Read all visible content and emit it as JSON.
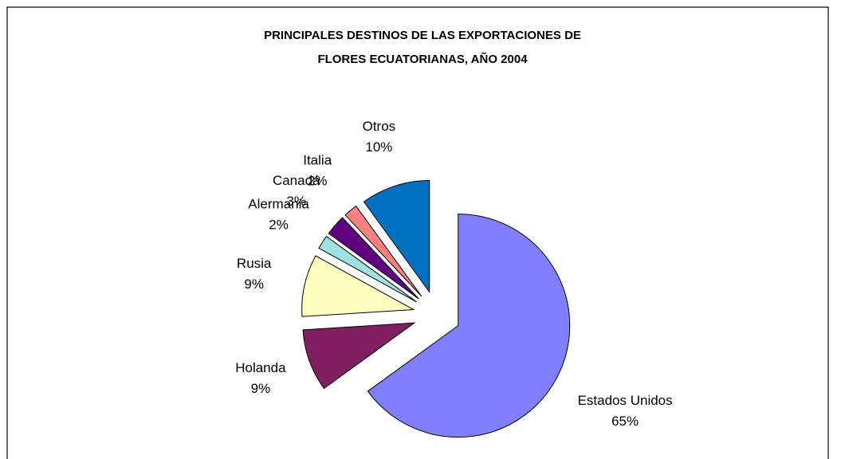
{
  "chart_data": {
    "type": "pie",
    "title": [
      "PRINCIPALES DESTINOS DE LAS EXPORTACIONES DE",
      "FLORES ECUATORIANAS, AÑO 2004"
    ],
    "categories": [
      "Estados Unidos",
      "Holanda",
      "Rusia",
      "Alermania",
      "Canadá",
      "Italia",
      "Otros"
    ],
    "values": [
      65,
      9,
      9,
      2,
      3,
      2,
      10
    ],
    "value_labels": [
      "65%",
      "9%",
      "9%",
      "2%",
      "3%",
      "2%",
      "10%"
    ],
    "colors": [
      "#8080ff",
      "#7f1f5f",
      "#ffffc0",
      "#a0e0e0",
      "#600080",
      "#ff8080",
      "#0070c0"
    ]
  }
}
